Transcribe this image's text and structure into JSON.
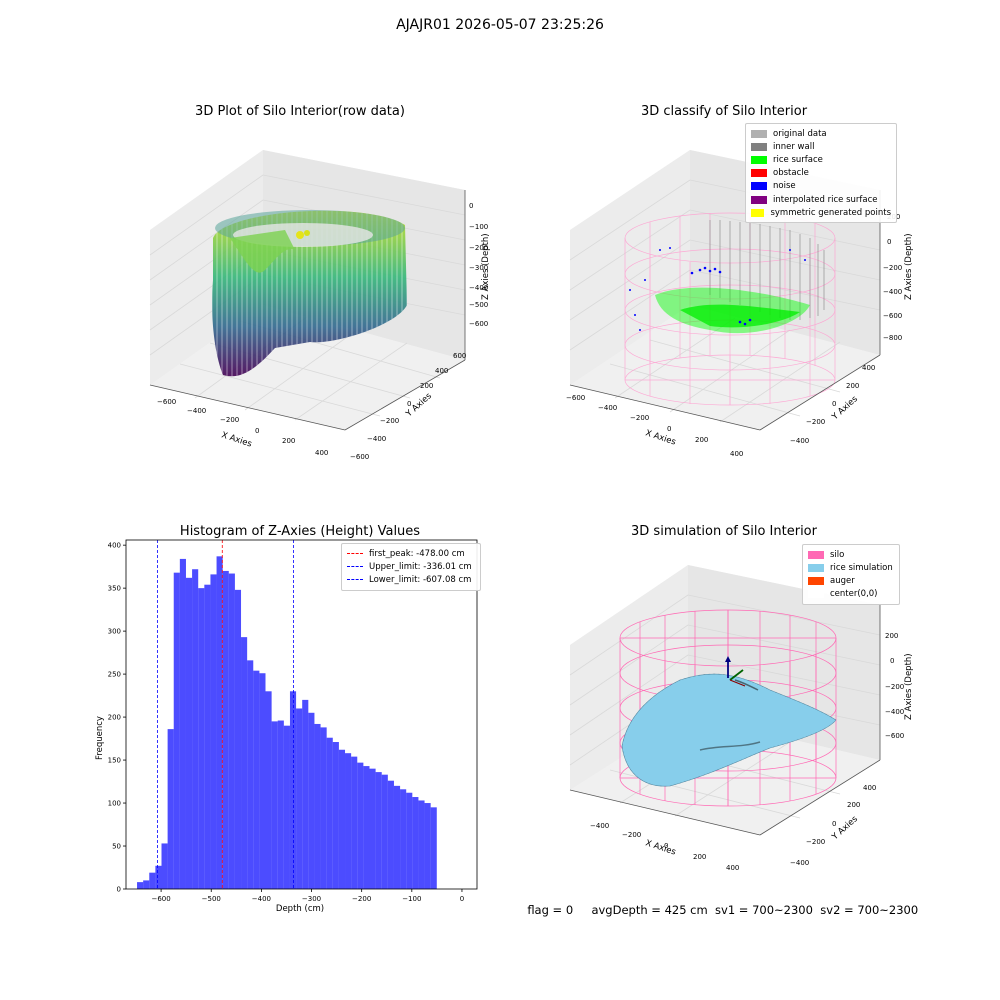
{
  "suptitle": "AJAJR01 2026-05-07 23:25:26",
  "footer": {
    "flag": "flag = 0",
    "avg_depth": "avgDepth = 425 cm",
    "sv1": "sv1 = 700~2300",
    "sv2": "sv2 = 700~2300"
  },
  "panels": {
    "raw": {
      "title": "3D Plot of Silo Interior(row data)",
      "xlabel": "X Axies",
      "ylabel": "Y Axies",
      "zlabel": "Z Axies (Depth)",
      "xticks": [
        "−600",
        "−400",
        "−200",
        "0",
        "200",
        "400"
      ],
      "yticks": [
        "600",
        "400",
        "200",
        "0",
        "−200",
        "−400",
        "−600"
      ],
      "zticks": [
        "0",
        "−100",
        "−200",
        "−300",
        "−400",
        "−500",
        "−600"
      ]
    },
    "classify": {
      "title": "3D classify of Silo Interior",
      "xlabel": "X Axies",
      "ylabel": "Y Axies",
      "zlabel": "Z Axies (Depth)",
      "xticks": [
        "−600",
        "−400",
        "−200",
        "0",
        "200",
        "400"
      ],
      "yticks": [
        "400",
        "200",
        "0",
        "−200",
        "−400"
      ],
      "zticks": [
        "200",
        "0",
        "−200",
        "−400",
        "−600",
        "−800"
      ],
      "legend": [
        {
          "label": "original data",
          "color": "#b0b0b0"
        },
        {
          "label": "inner wall",
          "color": "#808080"
        },
        {
          "label": "rice surface",
          "color": "#00ff00"
        },
        {
          "label": "obstacle",
          "color": "#ff0000"
        },
        {
          "label": "noise",
          "color": "#0000ff"
        },
        {
          "label": "interpolated rice surface",
          "color": "#800080"
        },
        {
          "label": "symmetric generated points",
          "color": "#ffff00"
        }
      ]
    },
    "simulation": {
      "title": "3D simulation of Silo Interior",
      "xlabel": "X Axies",
      "ylabel": "Y Axies",
      "zlabel": "Z Axies (Depth)",
      "xticks": [
        "−400",
        "−200",
        "0",
        "200",
        "400"
      ],
      "yticks": [
        "400",
        "200",
        "0",
        "−200",
        "−400"
      ],
      "zticks": [
        "200",
        "0",
        "−200",
        "−400",
        "−600"
      ],
      "legend": [
        {
          "label": "silo",
          "color": "#ff69b4"
        },
        {
          "label": "rice simulation",
          "color": "#87ceeb"
        },
        {
          "label": "auger",
          "color": "#ff4500"
        },
        {
          "label": "center(0,0)",
          "color": "#ffffff"
        }
      ]
    }
  },
  "chart_data": {
    "type": "bar",
    "title": "Histogram of Z-Axies (Height) Values",
    "xlabel": "Depth (cm)",
    "ylabel": "Frequency",
    "xlim": [
      -670,
      30
    ],
    "ylim": [
      0,
      406
    ],
    "xticks": [
      -600,
      -500,
      -400,
      -300,
      -200,
      -100,
      0
    ],
    "yticks": [
      0,
      50,
      100,
      150,
      200,
      250,
      300,
      350,
      400
    ],
    "grid": false,
    "bar_color": "#0000ff",
    "bin_start": -648,
    "bin_width": 12.2,
    "values": [
      8,
      10,
      19,
      27,
      53,
      186,
      368,
      384,
      362,
      372,
      350,
      354,
      366,
      387,
      370,
      367,
      348,
      293,
      266,
      254,
      251,
      230,
      195,
      196,
      190,
      230,
      210,
      220,
      205,
      192,
      188,
      176,
      171,
      162,
      158,
      154,
      147,
      143,
      140,
      136,
      133,
      126,
      120,
      116,
      112,
      107,
      103,
      100,
      95,
      0
    ],
    "legend_placement": "top-right",
    "lines": [
      {
        "name": "first_peak: -478.00 cm",
        "x": -478.0,
        "color": "#ff0000"
      },
      {
        "name": "Upper_limit: -336.01 cm",
        "x": -336.01,
        "color": "#0000ff"
      },
      {
        "name": "Lower_limit: -607.08 cm",
        "x": -607.08,
        "color": "#0000ff"
      }
    ]
  }
}
